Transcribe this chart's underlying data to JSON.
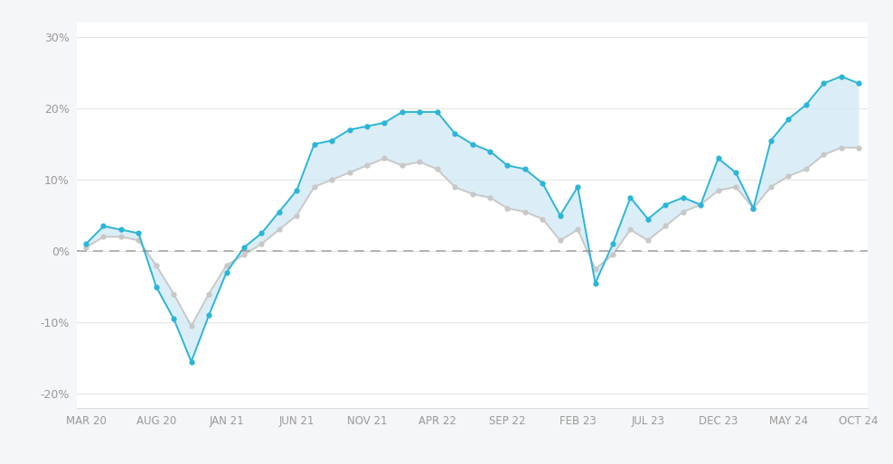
{
  "background_color": "#f5f6f8",
  "plot_bg_color": "#ffffff",
  "grid_color": "#e5e5e5",
  "zero_line_color": "#888888",
  "blue_line_color": "#2bb5d8",
  "blue_fill_color": "#cce8f4",
  "gray_line_color": "#c8c8c8",
  "ylim": [
    -22,
    32
  ],
  "yticks": [
    -20,
    -10,
    0,
    10,
    20,
    30
  ],
  "ytick_labels": [
    "-20%",
    "-10%",
    "0%",
    "10%",
    "20%",
    "30%"
  ],
  "xtick_labels": [
    "MAR 20",
    "AUG 20",
    "JAN 21",
    "JUN 21",
    "NOV 21",
    "APR 22",
    "SEP 22",
    "FEB 23",
    "JUL 23",
    "DEC 23",
    "MAY 24",
    "OCT 24"
  ],
  "blue_y": [
    1.0,
    3.5,
    3.0,
    2.5,
    -5.0,
    -9.5,
    -15.5,
    -9.0,
    -3.0,
    0.5,
    2.5,
    5.5,
    8.5,
    15.0,
    15.5,
    17.0,
    17.5,
    18.0,
    19.5,
    19.5,
    19.5,
    16.5,
    15.0,
    14.0,
    12.0,
    11.5,
    9.5,
    5.0,
    9.0,
    -4.5,
    1.0,
    7.5,
    4.5,
    6.5,
    7.5,
    6.5,
    13.0,
    11.0,
    6.0,
    15.5,
    18.5,
    20.5,
    23.5,
    24.5,
    23.5
  ],
  "gray_y": [
    0.5,
    2.0,
    2.0,
    1.5,
    -2.0,
    -6.0,
    -10.5,
    -6.0,
    -2.0,
    -0.5,
    1.0,
    3.0,
    5.0,
    9.0,
    10.0,
    11.0,
    12.0,
    13.0,
    12.0,
    12.5,
    11.5,
    9.0,
    8.0,
    7.5,
    6.0,
    5.5,
    4.5,
    1.5,
    3.0,
    -2.5,
    -0.5,
    3.0,
    1.5,
    3.5,
    5.5,
    6.5,
    8.5,
    9.0,
    6.0,
    9.0,
    10.5,
    11.5,
    13.5,
    14.5,
    14.5
  ],
  "marker_size": 3.5,
  "line_width": 1.4
}
